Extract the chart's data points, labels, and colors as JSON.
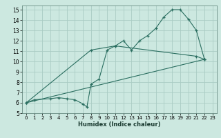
{
  "xlabel": "Humidex (Indice chaleur)",
  "bg_color": "#cce8e0",
  "grid_color": "#aaccc4",
  "line_color": "#2a6e60",
  "xlim": [
    -0.5,
    23.5
  ],
  "ylim": [
    5,
    15.4
  ],
  "xticks": [
    0,
    1,
    2,
    3,
    4,
    5,
    6,
    7,
    8,
    9,
    10,
    11,
    12,
    13,
    14,
    15,
    16,
    17,
    18,
    19,
    20,
    21,
    22,
    23
  ],
  "yticks": [
    5,
    6,
    7,
    8,
    9,
    10,
    11,
    12,
    13,
    14,
    15
  ],
  "line1_x": [
    0,
    1,
    3,
    4,
    5,
    6,
    7,
    7.5,
    8,
    9,
    10,
    11,
    12,
    13,
    14,
    15,
    16,
    17,
    18,
    19,
    20,
    21,
    22
  ],
  "line1_y": [
    6,
    6.3,
    6.4,
    6.5,
    6.4,
    6.3,
    5.9,
    5.6,
    7.8,
    8.3,
    11.1,
    11.5,
    12.0,
    11.1,
    12.0,
    12.5,
    13.2,
    14.3,
    15.0,
    15.0,
    14.1,
    13.0,
    10.2
  ],
  "line2_x": [
    0,
    22
  ],
  "line2_y": [
    6,
    10.2
  ],
  "line3_x": [
    0,
    8,
    11,
    21,
    22
  ],
  "line3_y": [
    6,
    11.1,
    11.5,
    10.5,
    10.2
  ]
}
